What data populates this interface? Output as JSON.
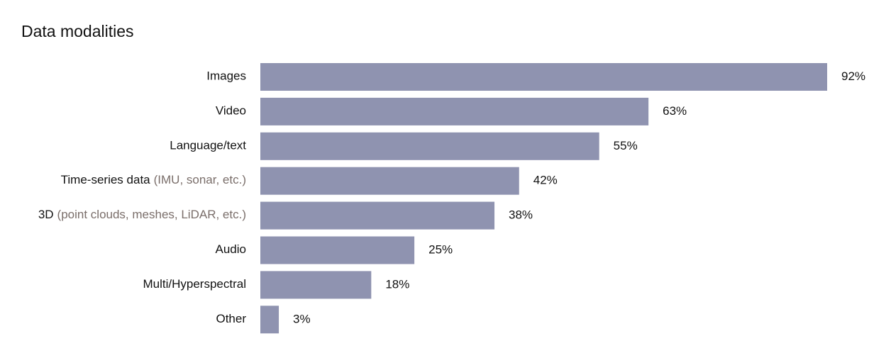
{
  "chart_data": {
    "type": "bar",
    "orientation": "horizontal",
    "title": "Data modalities",
    "categories": [
      "Images",
      "Video",
      "Language/text",
      "Time-series data",
      "3D",
      "Audio",
      "Multi/Hyperspectral",
      "Other"
    ],
    "category_notes": [
      null,
      null,
      null,
      "(IMU, sonar, etc.)",
      "(point clouds, meshes, LiDAR, etc.)",
      null,
      null,
      null
    ],
    "values": [
      92,
      63,
      55,
      42,
      38,
      25,
      18,
      3
    ],
    "value_labels": [
      "92%",
      "63%",
      "55%",
      "42%",
      "38%",
      "25%",
      "18%",
      "3%"
    ],
    "color": "#8f93b0"
  }
}
